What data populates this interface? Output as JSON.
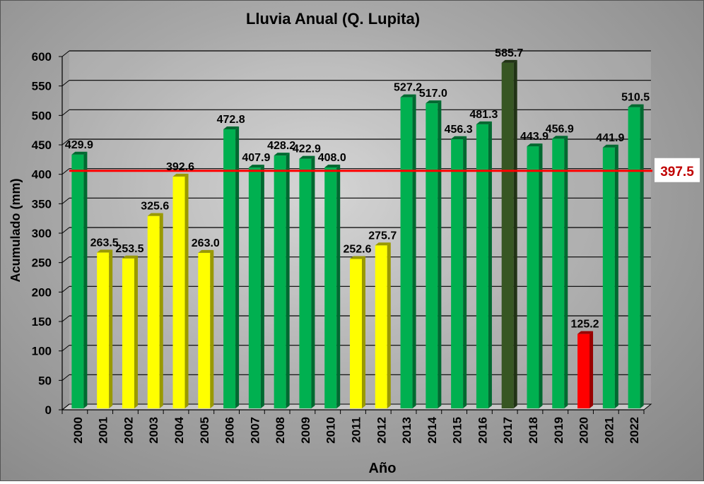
{
  "chart_data": {
    "type": "bar",
    "title": "Lluvia Anual (Q. Lupita)",
    "xlabel": "Año",
    "ylabel": "Acumulado (mm)",
    "ylim": [
      0,
      600
    ],
    "yticks": [
      0,
      50,
      100,
      150,
      200,
      250,
      300,
      350,
      400,
      450,
      500,
      550,
      600
    ],
    "grid": true,
    "categories": [
      "2000",
      "2001",
      "2002",
      "2003",
      "2004",
      "2005",
      "2006",
      "2007",
      "2008",
      "2009",
      "2010",
      "2011",
      "2012",
      "2013",
      "2014",
      "2015",
      "2016",
      "2017",
      "2018",
      "2019",
      "2020",
      "2021",
      "2022"
    ],
    "values": [
      429.9,
      263.5,
      253.5,
      325.6,
      392.6,
      263.0,
      472.8,
      407.9,
      428.2,
      422.9,
      408.0,
      252.6,
      275.7,
      527.2,
      517.0,
      456.3,
      481.3,
      585.7,
      443.9,
      456.9,
      125.2,
      441.9,
      510.5
    ],
    "labels": [
      "429.9",
      "263.5",
      "253.5",
      "325.6",
      "392.6",
      "263.0",
      "472.8",
      "407.9",
      "428.2",
      "422.9",
      "408.0",
      "252.6",
      "275.7",
      "527.2",
      "517.0",
      "456.3",
      "481.3",
      "585.7",
      "443.9",
      "456.9",
      "125.2",
      "441.9",
      "510.5"
    ],
    "bar_colors": [
      "#00b050",
      "#ffff00",
      "#ffff00",
      "#ffff00",
      "#ffff00",
      "#ffff00",
      "#00b050",
      "#00b050",
      "#00b050",
      "#00b050",
      "#00b050",
      "#ffff00",
      "#ffff00",
      "#00b050",
      "#00b050",
      "#00b050",
      "#00b050",
      "#375623",
      "#00b050",
      "#00b050",
      "#ff0000",
      "#00b050",
      "#00b050"
    ],
    "reference_line": {
      "value": 397.5,
      "label": "397.5",
      "color": "#ff0000",
      "label_color": "#c00000"
    }
  }
}
